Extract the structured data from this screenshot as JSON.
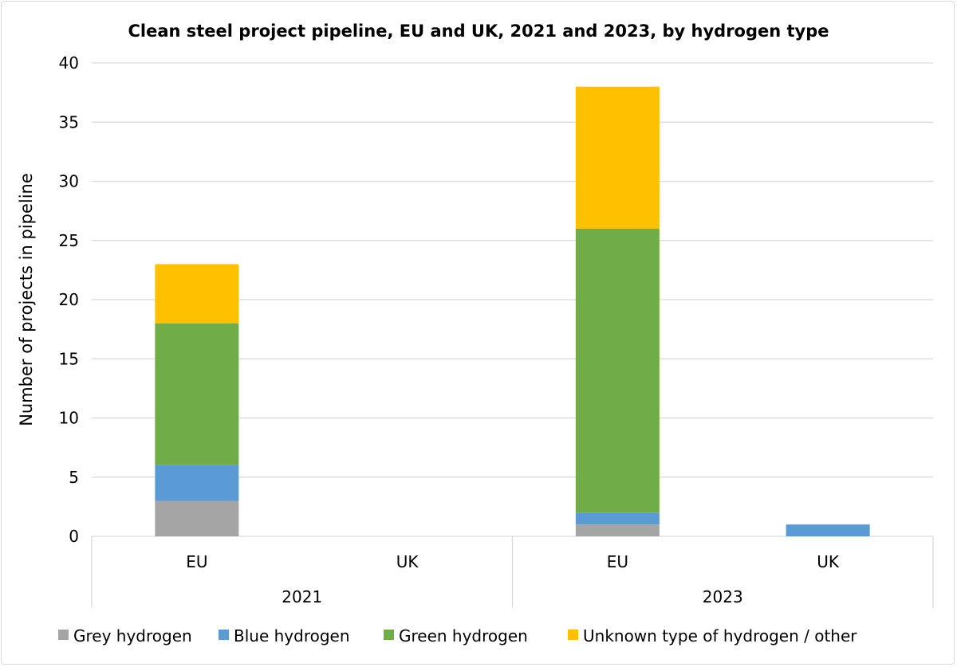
{
  "chart_data": {
    "type": "bar",
    "stacked": true,
    "title": "Clean steel project pipeline, EU and UK, 2021 and 2023, by hydrogen type",
    "xlabel": "",
    "ylabel": "Number of projects in pipeline",
    "ylim": [
      0,
      40
    ],
    "yticks": [
      0,
      5,
      10,
      15,
      20,
      25,
      30,
      35,
      40
    ],
    "grid": true,
    "legend_position": "bottom",
    "groups": [
      {
        "label": "2021",
        "categories": [
          "EU",
          "UK"
        ]
      },
      {
        "label": "2023",
        "categories": [
          "EU",
          "UK"
        ]
      }
    ],
    "categories": [
      "2021 EU",
      "2021 UK",
      "2023 EU",
      "2023 UK"
    ],
    "series": [
      {
        "name": "Grey hydrogen",
        "color": "#a5a5a5",
        "values": [
          3,
          0,
          1,
          0
        ]
      },
      {
        "name": "Blue hydrogen",
        "color": "#5b9bd5",
        "values": [
          3,
          0,
          1,
          1
        ]
      },
      {
        "name": "Green hydrogen",
        "color": "#70ad47",
        "values": [
          12,
          0,
          24,
          0
        ]
      },
      {
        "name": "Unknown type of hydrogen / other",
        "color": "#ffc000",
        "values": [
          5,
          0,
          12,
          0
        ]
      }
    ]
  }
}
